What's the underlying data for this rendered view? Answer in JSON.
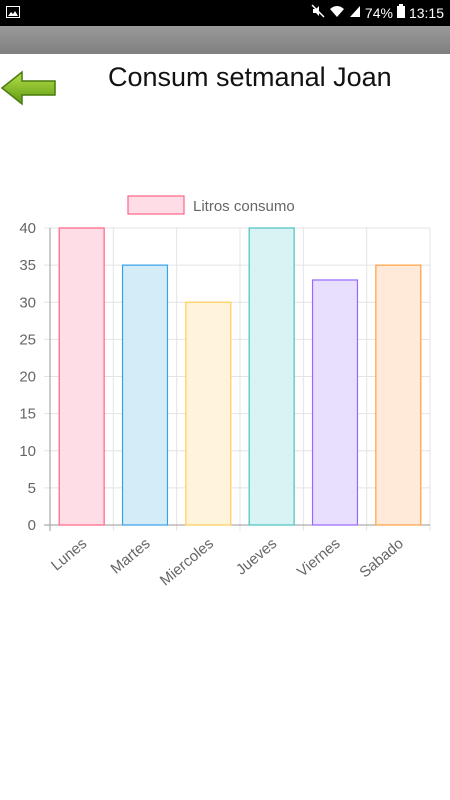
{
  "status_bar": {
    "battery": "74%",
    "time": "13:15",
    "icons": [
      "image-icon",
      "mute-icon",
      "wifi-icon",
      "signal-icon",
      "battery-icon"
    ]
  },
  "header": {
    "title": "Consum setmanal Joan",
    "back_icon": "arrow-left-icon"
  },
  "colors": {
    "fill": [
      "#ffdde6",
      "#d4ebf8",
      "#fff3dc",
      "#d8f3f3",
      "#e8dfff",
      "#ffead9"
    ],
    "stroke": [
      "#ff6384",
      "#36a2eb",
      "#ffce56",
      "#4bc0c0",
      "#9966ff",
      "#ff9f40"
    ]
  },
  "chart_data": {
    "type": "bar",
    "categories": [
      "Lunes",
      "Martes",
      "Miercoles",
      "Jueves",
      "Viernes",
      "Sabado"
    ],
    "series": [
      {
        "name": "Litros consumo",
        "values": [
          40,
          35,
          30,
          40,
          33,
          35
        ]
      }
    ],
    "ylim": [
      0,
      40
    ],
    "yticks": [
      0,
      5,
      10,
      15,
      20,
      25,
      30,
      35,
      40
    ],
    "legend": "top",
    "grid": true,
    "xlabel": "",
    "ylabel": ""
  }
}
